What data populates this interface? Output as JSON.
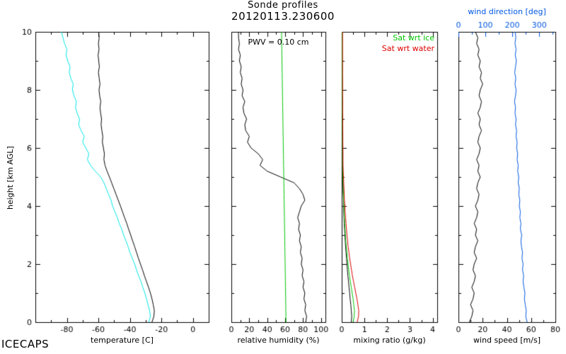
{
  "header": {
    "title": "Sonde profiles",
    "subtitle": "20120113.230600"
  },
  "branding": {
    "label": "ICECAPS"
  },
  "chart_data": {
    "type": "line",
    "title": "Sonde profiles",
    "subtitle": "20120113.230600",
    "ylabel": "height [km AGL]",
    "ylim": [
      0,
      10
    ],
    "yticks": [
      0,
      2,
      4,
      6,
      8,
      10
    ],
    "heights_km": [
      0,
      0.2,
      0.4,
      0.6,
      0.8,
      1,
      1.2,
      1.4,
      1.6,
      1.8,
      2,
      2.2,
      2.4,
      2.6,
      2.8,
      3,
      3.2,
      3.4,
      3.6,
      3.8,
      4,
      4.2,
      4.4,
      4.6,
      4.8,
      5,
      5.2,
      5.4,
      5.6,
      5.8,
      6,
      6.2,
      6.4,
      6.6,
      6.8,
      7,
      7.2,
      7.4,
      7.6,
      7.8,
      8,
      8.2,
      8.4,
      8.6,
      8.8,
      9,
      9.2,
      9.4,
      9.6,
      9.8,
      10
    ],
    "panels": [
      {
        "id": "temperature",
        "xlabel": "temperature [C]",
        "xlim": [
          -100,
          10
        ],
        "xticks": [
          -80,
          -60,
          -40,
          -20,
          0
        ],
        "series": [
          {
            "name": "temperature",
            "color": "#000000",
            "values": [
              -26,
              -24.8,
              -24.5,
              -25.2,
              -26,
              -27,
              -28.2,
              -29.5,
              -30.8,
              -32,
              -33.3,
              -34.6,
              -35.8,
              -37,
              -38.3,
              -39.5,
              -40.8,
              -42,
              -43.4,
              -44.7,
              -46,
              -47.4,
              -48.8,
              -50.2,
              -51.6,
              -53,
              -54.5,
              -55.8,
              -56.5,
              -56.2,
              -56.8,
              -57.5,
              -57.2,
              -57.8,
              -58.3,
              -58,
              -58.6,
              -59,
              -58.5,
              -59.2,
              -59.6,
              -59,
              -59.5,
              -60,
              -59.4,
              -59.8,
              -60.2,
              -59.6,
              -60,
              -59.5,
              -59.8
            ]
          },
          {
            "name": "dewpoint",
            "color": "#00e5e5",
            "values": [
              -28,
              -27,
              -27.5,
              -28.5,
              -29.5,
              -30.5,
              -31.8,
              -33,
              -34.5,
              -35.8,
              -37,
              -38.5,
              -40,
              -41.2,
              -42.5,
              -44,
              -45.2,
              -46.8,
              -48,
              -49.5,
              -51,
              -52,
              -53.5,
              -55,
              -56.5,
              -58.5,
              -62,
              -65,
              -67,
              -66,
              -68,
              -70,
              -69,
              -71,
              -72.5,
              -72,
              -73.5,
              -74.5,
              -74,
              -75.5,
              -76.5,
              -76,
              -77.5,
              -78.5,
              -78,
              -79.5,
              -80.5,
              -80,
              -81.5,
              -82.5,
              -83.5
            ]
          }
        ]
      },
      {
        "id": "relative-humidity",
        "xlabel": "relative humidity (%)",
        "xlim": [
          0,
          105
        ],
        "xticks": [
          0,
          20,
          40,
          60,
          80,
          100
        ],
        "annotation": "PWV = 0.10 cm",
        "series": [
          {
            "name": "relative-humidity",
            "color": "#000000",
            "values": [
              83,
              84,
              82,
              83,
              81,
              82,
              80,
              81,
              79,
              80,
              78,
              79,
              77,
              78,
              76,
              77,
              75,
              76,
              74,
              76,
              78,
              82,
              80,
              76,
              70,
              55,
              40,
              32,
              35,
              30,
              22,
              18,
              20,
              16,
              15,
              17,
              14,
              13,
              15,
              12,
              13,
              11,
              12,
              10,
              11,
              9,
              10,
              8,
              9,
              8,
              8
            ]
          },
          {
            "name": "ice-saturation-threshold",
            "color": "#00c400",
            "values": [
              61,
              60.9,
              60.8,
              60.7,
              60.6,
              60.5,
              60.4,
              60.3,
              60.2,
              60.1,
              60,
              59.9,
              59.8,
              59.7,
              59.6,
              59.5,
              59.4,
              59.3,
              59.2,
              59.1,
              59,
              58.9,
              58.8,
              58.7,
              58.6,
              58.5,
              58.4,
              58.3,
              58.2,
              58.1,
              58,
              57.9,
              57.8,
              57.7,
              57.6,
              57.5,
              57.4,
              57.3,
              57.2,
              57.1,
              57,
              56.9,
              56.8,
              56.7,
              56.6,
              56.5,
              56.4,
              56.3,
              56.2,
              56.1,
              56
            ]
          }
        ]
      },
      {
        "id": "mixing-ratio",
        "xlabel": "mixing ratio (g/kg)",
        "xlim": [
          0,
          4.2
        ],
        "xticks": [
          0,
          1,
          2,
          3,
          4
        ],
        "legend": [
          {
            "label": "Sat wrt ice",
            "color": "#00c400"
          },
          {
            "label": "Sat wrt water",
            "color": "#dd0000"
          }
        ],
        "series": [
          {
            "name": "mixing-ratio",
            "color": "#000000",
            "values": [
              0.42,
              0.44,
              0.42,
              0.4,
              0.37,
              0.35,
              0.32,
              0.3,
              0.27,
              0.25,
              0.23,
              0.21,
              0.19,
              0.17,
              0.155,
              0.14,
              0.125,
              0.11,
              0.1,
              0.09,
              0.085,
              0.08,
              0.07,
              0.06,
              0.05,
              0.04,
              0.03,
              0.025,
              0.027,
              0.024,
              0.02,
              0.017,
              0.018,
              0.015,
              0.014,
              0.015,
              0.013,
              0.012,
              0.013,
              0.011,
              0.011,
              0.01,
              0.01,
              0.009,
              0.009,
              0.008,
              0.008,
              0.007,
              0.007,
              0.007,
              0.006
            ]
          },
          {
            "name": "sat-wrt-ice",
            "color": "#00c400",
            "values": [
              0.5,
              0.55,
              0.56,
              0.53,
              0.5,
              0.46,
              0.42,
              0.38,
              0.34,
              0.31,
              0.28,
              0.25,
              0.23,
              0.2,
              0.18,
              0.16,
              0.15,
              0.13,
              0.12,
              0.105,
              0.095,
              0.085,
              0.075,
              0.065,
              0.058,
              0.05,
              0.043,
              0.038,
              0.035,
              0.036,
              0.034,
              0.031,
              0.032,
              0.03,
              0.028,
              0.029,
              0.027,
              0.026,
              0.027,
              0.025,
              0.024,
              0.025,
              0.024,
              0.023,
              0.024,
              0.023,
              0.022,
              0.023,
              0.022,
              0.023,
              0.022
            ]
          },
          {
            "name": "sat-wrt-water",
            "color": "#dd0000",
            "values": [
              0.68,
              0.74,
              0.75,
              0.71,
              0.67,
              0.62,
              0.57,
              0.52,
              0.47,
              0.43,
              0.39,
              0.35,
              0.32,
              0.28,
              0.26,
              0.23,
              0.21,
              0.19,
              0.17,
              0.15,
              0.14,
              0.12,
              0.11,
              0.1,
              0.088,
              0.078,
              0.068,
              0.06,
              0.056,
              0.058,
              0.054,
              0.05,
              0.051,
              0.048,
              0.045,
              0.046,
              0.043,
              0.042,
              0.043,
              0.04,
              0.039,
              0.04,
              0.039,
              0.037,
              0.038,
              0.037,
              0.036,
              0.037,
              0.036,
              0.037,
              0.036
            ]
          }
        ]
      },
      {
        "id": "wind",
        "xlabel": "wind speed [m/s]",
        "xlim": [
          0,
          80
        ],
        "xticks": [
          0,
          20,
          40,
          60,
          80
        ],
        "top_axis": {
          "label": "wind direction [deg]",
          "xlim": [
            0,
            360
          ],
          "xticks": [
            0,
            100,
            200,
            300
          ],
          "color": "#0058e0"
        },
        "series": [
          {
            "name": "wind-speed",
            "color": "#000000",
            "values": [
              9,
              11,
              12,
              10,
              12,
              13,
              11,
              13,
              14,
              12,
              13,
              15,
              13,
              14,
              16,
              14,
              15,
              13,
              15,
              16,
              14,
              16,
              17,
              15,
              16,
              18,
              16,
              17,
              15,
              17,
              18,
              16,
              17,
              19,
              17,
              18,
              16,
              18,
              19,
              17,
              18,
              20,
              18,
              19,
              17,
              18,
              16,
              17,
              15,
              16,
              14
            ]
          },
          {
            "name": "wind-direction",
            "color": "#0058e0",
            "axis": "top",
            "values": [
              255,
              250,
              252,
              248,
              245,
              247,
              243,
              240,
              242,
              238,
              240,
              236,
              238,
              234,
              232,
              235,
              230,
              232,
              228,
              230,
              226,
              228,
              224,
              226,
              222,
              224,
              220,
              222,
              218,
              220,
              216,
              218,
              214,
              216,
              212,
              214,
              210,
              212,
              208,
              212,
              214,
              210,
              213,
              209,
              212,
              215,
              211,
              214,
              210,
              213,
              211
            ]
          }
        ]
      }
    ]
  }
}
